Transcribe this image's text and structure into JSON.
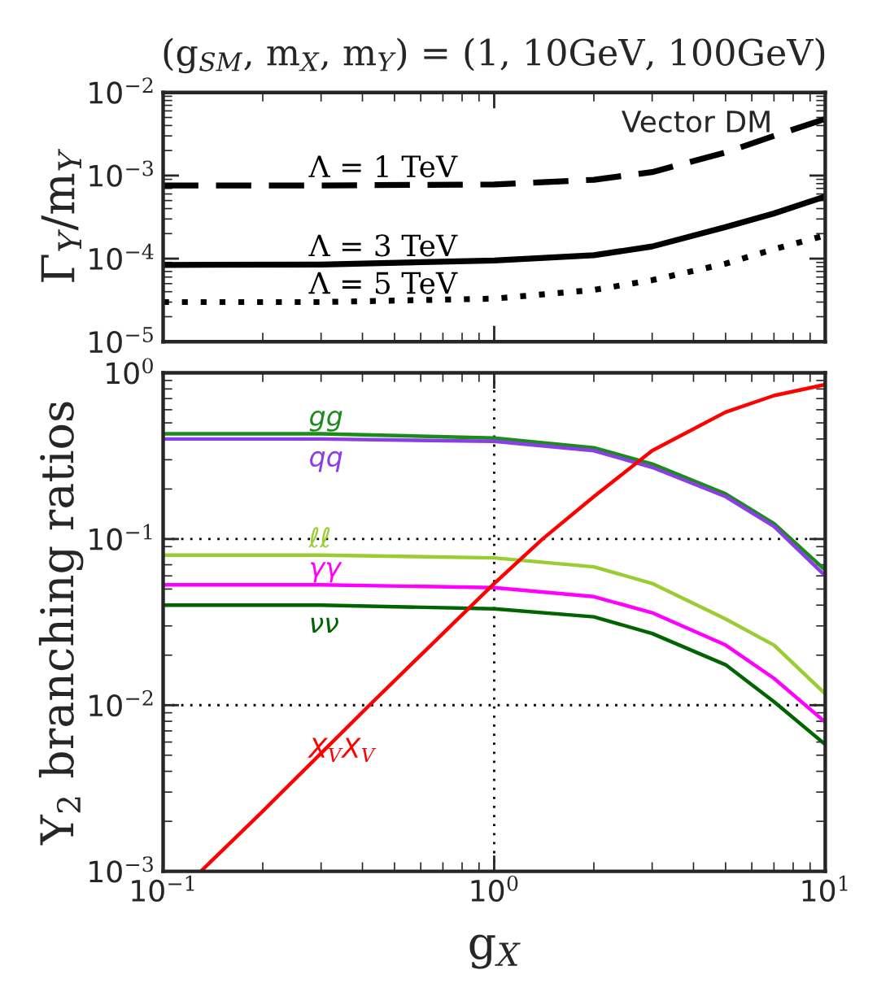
{
  "chart_data": [
    {
      "type": "line",
      "title": "(g$_{SM}$, m$_{X}$, m$_{Y}$) = (1, 10GeV, 100GeV)",
      "ylabel": "Γ$_{Y}$/m$_{Y}$",
      "log": "xy",
      "grid": false,
      "legend": false,
      "tick_labels": "y",
      "xlim": [
        0.1,
        10
      ],
      "xticks": [
        {
          "value": 0.1,
          "label": null
        },
        {
          "value": 1,
          "label": null
        },
        {
          "value": 10,
          "label": null
        }
      ],
      "ylim": [
        1e-05,
        0.01
      ],
      "yticks": [
        {
          "value": 1e-05,
          "label": "10$^{−5}$"
        },
        {
          "value": 0.0001,
          "label": "10$^{−4}$"
        },
        {
          "value": 0.001,
          "label": "10$^{−3}$"
        },
        {
          "value": 0.01,
          "label": "10$^{−2}$"
        }
      ],
      "annotations": [
        "Vector DM"
      ],
      "series": [
        {
          "name": "Λ = 1 TeV",
          "color": "#000000",
          "line_style": "dashed",
          "x": [
            0.1,
            0.3,
            1,
            2,
            3,
            5,
            7,
            10
          ],
          "values": [
            0.00076,
            0.00076,
            0.00078,
            0.00089,
            0.0011,
            0.0019,
            0.003,
            0.0048
          ]
        },
        {
          "name": "Λ = 3 TeV",
          "color": "#000000",
          "line_style": "solid",
          "x": [
            0.1,
            0.3,
            1,
            2,
            3,
            5,
            7,
            10
          ],
          "values": [
            8.4e-05,
            8.5e-05,
            9.5e-05,
            0.00011,
            0.00014,
            0.00024,
            0.00035,
            0.00056
          ]
        },
        {
          "name": "Λ = 5 TeV",
          "color": "#000000",
          "line_style": "dotted",
          "x": [
            0.1,
            0.3,
            1,
            2,
            3,
            5,
            7,
            10
          ],
          "values": [
            3e-05,
            3e-05,
            3.3e-05,
            4.2e-05,
            5.5e-05,
            8.7e-05,
            0.00013,
            0.00019
          ]
        }
      ]
    },
    {
      "type": "line",
      "xlabel": "g$_{X}$",
      "ylabel": "Y$_{2}$ branching ratios",
      "log": "xy",
      "grid": true,
      "legend": false,
      "xlim": [
        0.1,
        10
      ],
      "xticks": [
        {
          "value": 0.1,
          "label": "10$^{−1}$"
        },
        {
          "value": 1,
          "label": "10$^{0}$"
        },
        {
          "value": 10,
          "label": "10$^{1}$"
        }
      ],
      "ylim": [
        0.001,
        1
      ],
      "yticks": [
        {
          "value": 0.001,
          "label": "10$^{−3}$"
        },
        {
          "value": 0.01,
          "label": "10$^{−2}$"
        },
        {
          "value": 0.1,
          "label": "10$^{−1}$"
        },
        {
          "value": 1,
          "label": "10$^{0}$"
        }
      ],
      "series": [
        {
          "name": "gg",
          "color": "#1a8c1a",
          "x": [
            0.1,
            0.3,
            1,
            2,
            3,
            5,
            7,
            10
          ],
          "values": [
            0.43,
            0.43,
            0.405,
            0.354,
            0.283,
            0.187,
            0.124,
            0.065
          ]
        },
        {
          "name": "qq",
          "color": "#8a3ee6",
          "x": [
            0.1,
            0.3,
            1,
            2,
            3,
            5,
            7,
            10
          ],
          "values": [
            0.4,
            0.4,
            0.387,
            0.34,
            0.27,
            0.18,
            0.119,
            0.06
          ]
        },
        {
          "name": "ℓℓ",
          "color": "#9acd32",
          "x": [
            0.1,
            0.3,
            1,
            2,
            3,
            5,
            7,
            10
          ],
          "values": [
            0.08,
            0.08,
            0.077,
            0.068,
            0.054,
            0.033,
            0.023,
            0.0117
          ]
        },
        {
          "name": "γγ",
          "color": "#ff00ff",
          "x": [
            0.1,
            0.3,
            1,
            2,
            3,
            5,
            7,
            10
          ],
          "values": [
            0.053,
            0.053,
            0.051,
            0.045,
            0.036,
            0.023,
            0.0145,
            0.0079
          ]
        },
        {
          "name": "νν",
          "color": "#006400",
          "x": [
            0.1,
            0.3,
            1,
            2,
            3,
            5,
            7,
            10
          ],
          "values": [
            0.04,
            0.04,
            0.038,
            0.034,
            0.027,
            0.0175,
            0.0105,
            0.0058
          ]
        },
        {
          "name": "X$_{V}$X$_{V}$",
          "color": "#ff0000",
          "x": [
            0.13,
            0.2,
            0.42,
            0.7,
            1,
            1.4,
            2,
            3,
            5,
            7,
            10
          ],
          "values": [
            0.001,
            0.0023,
            0.01,
            0.027,
            0.054,
            0.1,
            0.18,
            0.34,
            0.58,
            0.73,
            0.85
          ]
        }
      ]
    }
  ]
}
